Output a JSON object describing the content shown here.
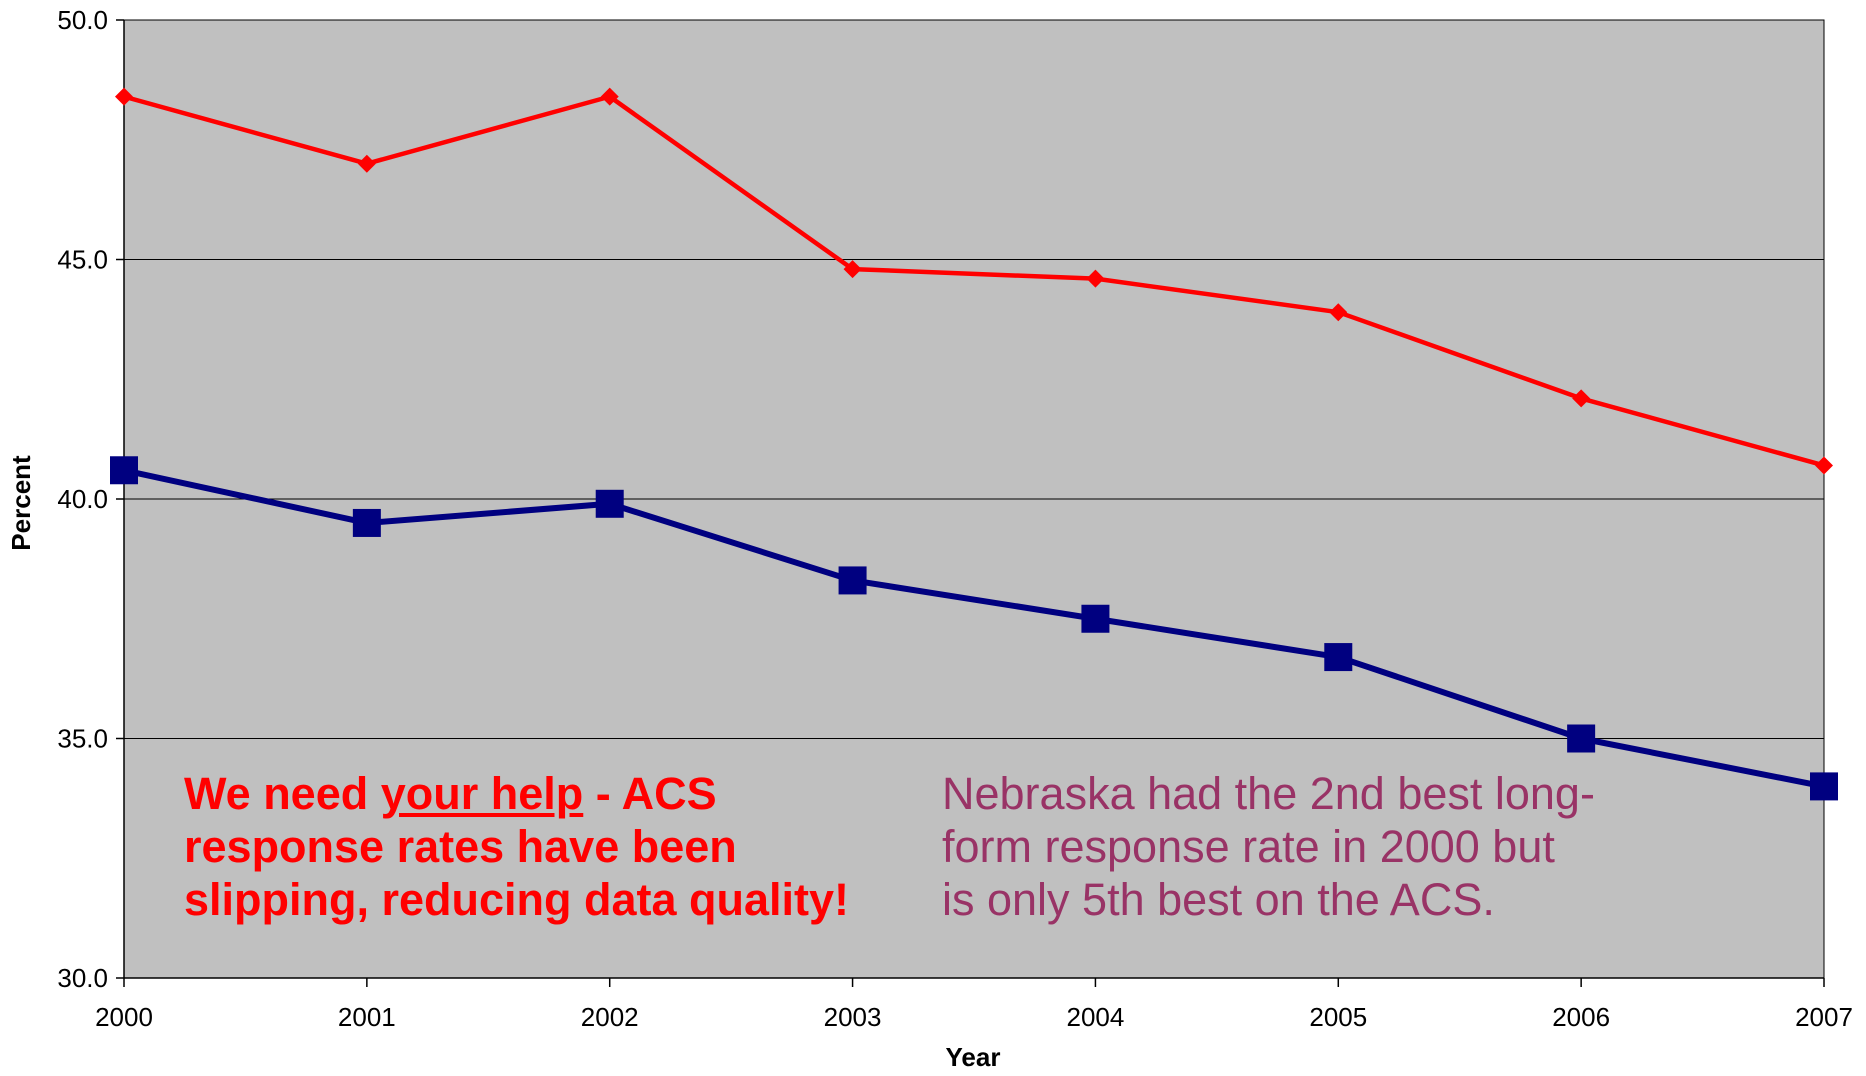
{
  "chart_data": {
    "type": "line",
    "title": "",
    "xlabel": "Year",
    "ylabel": "Percent",
    "categories": [
      "2000",
      "2001",
      "2002",
      "2003",
      "2004",
      "2005",
      "2006",
      "2007"
    ],
    "ylim": [
      30.0,
      50.0
    ],
    "yticks": [
      "30.0",
      "35.0",
      "40.0",
      "45.0",
      "50.0"
    ],
    "ytick_values": [
      30,
      35,
      40,
      45,
      50
    ],
    "grid": true,
    "legend": "none",
    "series": [
      {
        "color": "#ff0000",
        "marker": "diamond",
        "values": [
          48.4,
          47.0,
          48.4,
          44.8,
          44.6,
          43.9,
          42.1,
          40.7
        ]
      },
      {
        "color": "#000080",
        "marker": "square",
        "values": [
          40.6,
          39.5,
          39.9,
          38.3,
          37.5,
          36.7,
          35.0,
          34.0
        ]
      }
    ],
    "annotations": {
      "help": {
        "color": "#ff0000",
        "line1_pre": "We need ",
        "line1_underlined": "your help",
        "line1_post": " - ACS",
        "line2": "response rates have been",
        "line3": "slipping, reducing data quality!"
      },
      "nebraska": {
        "color": "#993366",
        "line1": "Nebraska had the 2nd best long-",
        "line2": "form response rate in 2000 but",
        "line3": "is only 5th best on the ACS."
      }
    },
    "colors": {
      "plot_background": "#c0c0c0",
      "gridline": "#000000",
      "axis": "#000000"
    }
  }
}
